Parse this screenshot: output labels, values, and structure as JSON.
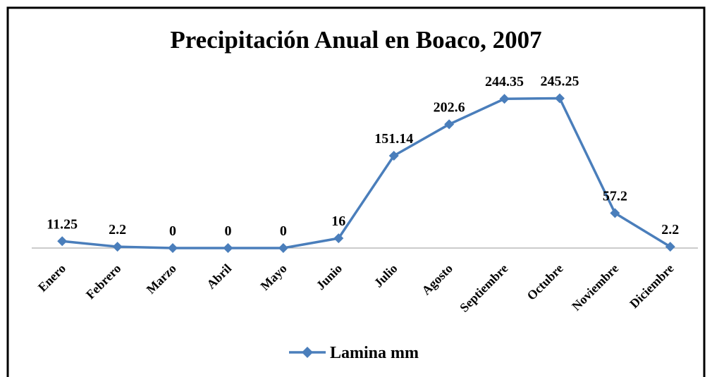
{
  "chart_data": {
    "type": "line",
    "title": "Precipitación Anual en Boaco, 2007",
    "categories": [
      "Enero",
      "Febrero",
      "Marzo",
      "Abril",
      "Mayo",
      "Junio",
      "Julio",
      "Agosto",
      "Septiembre",
      "Octubre",
      "Noviembre",
      "Diciembre"
    ],
    "series": [
      {
        "name": "Lamina mm",
        "color": "#4a7ebb",
        "values": [
          11.25,
          2.2,
          0,
          0,
          0,
          16,
          151.14,
          202.6,
          244.35,
          245.25,
          57.2,
          2.2
        ]
      }
    ],
    "ylim": [
      0,
      300
    ],
    "legend": "bottom"
  }
}
